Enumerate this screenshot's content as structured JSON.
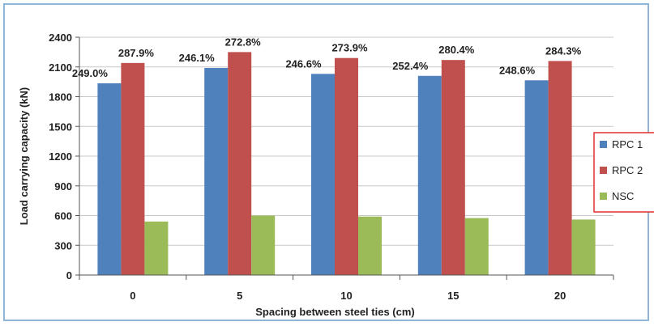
{
  "chart_data": {
    "type": "bar",
    "xlabel": "Spacing  between steel ties (cm)",
    "ylabel": "Load carrying capacity  (kN)",
    "ylim": [
      0,
      2400
    ],
    "yticks": [
      "0",
      "300",
      "600",
      "900",
      "1200",
      "1500",
      "1800",
      "2100",
      "2400"
    ],
    "categories": [
      "0",
      "5",
      "10",
      "15",
      "20"
    ],
    "series": [
      {
        "name": "RPC 1",
        "color": "#4f81bd",
        "values": [
          1935,
          2090,
          2030,
          2010,
          1965
        ],
        "labels": [
          "249.0%",
          "246.1%",
          "246.6%",
          "252.4%",
          "248.6%"
        ]
      },
      {
        "name": "RPC 2",
        "color": "#c0504d",
        "values": [
          2140,
          2250,
          2190,
          2170,
          2160
        ],
        "labels": [
          "287.9%",
          "272.8%",
          "273.9%",
          "280.4%",
          "284.3%"
        ]
      },
      {
        "name": "NSC",
        "color": "#9bbb59",
        "values": [
          540,
          600,
          590,
          575,
          560
        ],
        "labels": [
          "",
          "",
          "",
          "",
          ""
        ]
      }
    ],
    "grid": "horizontal",
    "legend_position": "right"
  }
}
